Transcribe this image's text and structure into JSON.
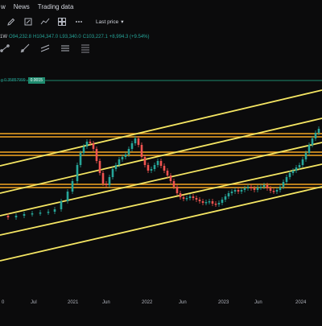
{
  "topbar": {
    "items": [
      "w",
      "News",
      "Trading data"
    ]
  },
  "toolbar": {
    "icons": [
      "pencil-icon",
      "edit-icon",
      "indicator-icon",
      "layout-icon",
      "more-icon"
    ],
    "last_price_label": "Last price",
    "last_price_caret": "▾"
  },
  "ohlc": {
    "symbol_interval": "1W",
    "open": "O94,232.8",
    "high": "H104,347.0",
    "low": "L93,340.0",
    "close": "C103,227.1",
    "change": "+8,994.3 (+9.54%)"
  },
  "drawtools": {
    "icons": [
      "trendline-icon",
      "ray-icon",
      "parallel-channel-icon",
      "horizontal-lines-icon",
      "fib-icon"
    ]
  },
  "fib": {
    "label": "g 0.35857999",
    "value": "0.0015"
  },
  "colors": {
    "up": "#26a69a",
    "down": "#ef5350",
    "channel": "#f5e663",
    "horizontal": "#f5a623"
  },
  "xaxis": {
    "labels": [
      "0",
      "Jul",
      "2021",
      "Jun",
      "2022",
      "Jun",
      "2023",
      "Jun",
      "2024"
    ]
  }
}
